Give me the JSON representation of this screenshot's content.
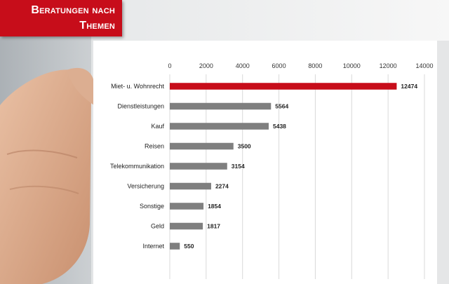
{
  "header": {
    "title_line1": "Beratungen nach",
    "title_line2": "Themen"
  },
  "colors": {
    "banner": "#c70d1a",
    "highlight_bar": "#c70d1a",
    "default_bar": "#7f7f7f",
    "gridline": "#d9d9d9"
  },
  "chart_data": {
    "type": "bar",
    "orientation": "horizontal",
    "title": "Beratungen nach Themen",
    "xlabel": "",
    "ylabel": "",
    "xlim": [
      0,
      14000
    ],
    "x_ticks": [
      0,
      2000,
      4000,
      6000,
      8000,
      10000,
      12000,
      14000
    ],
    "axis_position": "top",
    "grid": true,
    "categories": [
      "Miet- u. Wohnrecht",
      "Dienstleistungen",
      "Kauf",
      "Reisen",
      "Telekommunikation",
      "Versicherung",
      "Sonstige",
      "Geld",
      "Internet"
    ],
    "values": [
      12474,
      5564,
      5438,
      3500,
      3154,
      2274,
      1854,
      1817,
      550
    ],
    "highlight_index": 0
  }
}
